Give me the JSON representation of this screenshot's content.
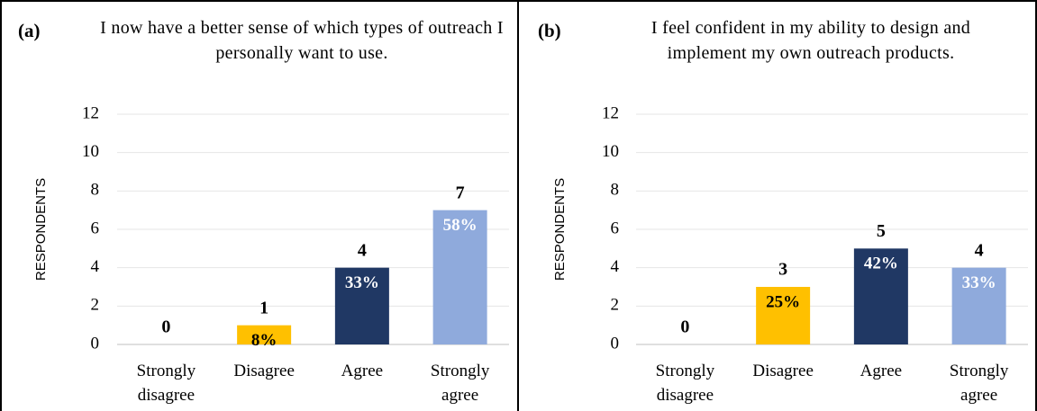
{
  "chart_data": [
    {
      "type": "bar",
      "panel_label": "(a)",
      "title": "I now have a better sense of which types of outreach I personally want to use.",
      "y_label": "RESPONDENTS",
      "categories": [
        "Strongly disagree",
        "Disagree",
        "Agree",
        "Strongly agree"
      ],
      "values": [
        0,
        1,
        4,
        7
      ],
      "percent_labels": [
        null,
        "8%",
        "33%",
        "58%"
      ],
      "colors": [
        "#ffc000",
        "#ffc000",
        "#203864",
        "#8faadc"
      ],
      "percent_label_colors": [
        "#000000",
        "#000000",
        "#ffffff",
        "#ffffff"
      ],
      "ylim": [
        0,
        12
      ],
      "yticks": [
        0,
        2,
        4,
        6,
        8,
        10,
        12
      ],
      "grid": true
    },
    {
      "type": "bar",
      "panel_label": "(b)",
      "title": "I feel confident in my ability to design and implement my own outreach products.",
      "y_label": "RESPONDENTS",
      "categories": [
        "Strongly disagree",
        "Disagree",
        "Agree",
        "Strongly agree"
      ],
      "values": [
        0,
        3,
        5,
        4
      ],
      "percent_labels": [
        null,
        "25%",
        "42%",
        "33%"
      ],
      "colors": [
        "#ffc000",
        "#ffc000",
        "#203864",
        "#8faadc"
      ],
      "percent_label_colors": [
        "#000000",
        "#000000",
        "#ffffff",
        "#ffffff"
      ],
      "ylim": [
        0,
        12
      ],
      "yticks": [
        0,
        2,
        4,
        6,
        8,
        10,
        12
      ],
      "grid": true
    }
  ]
}
